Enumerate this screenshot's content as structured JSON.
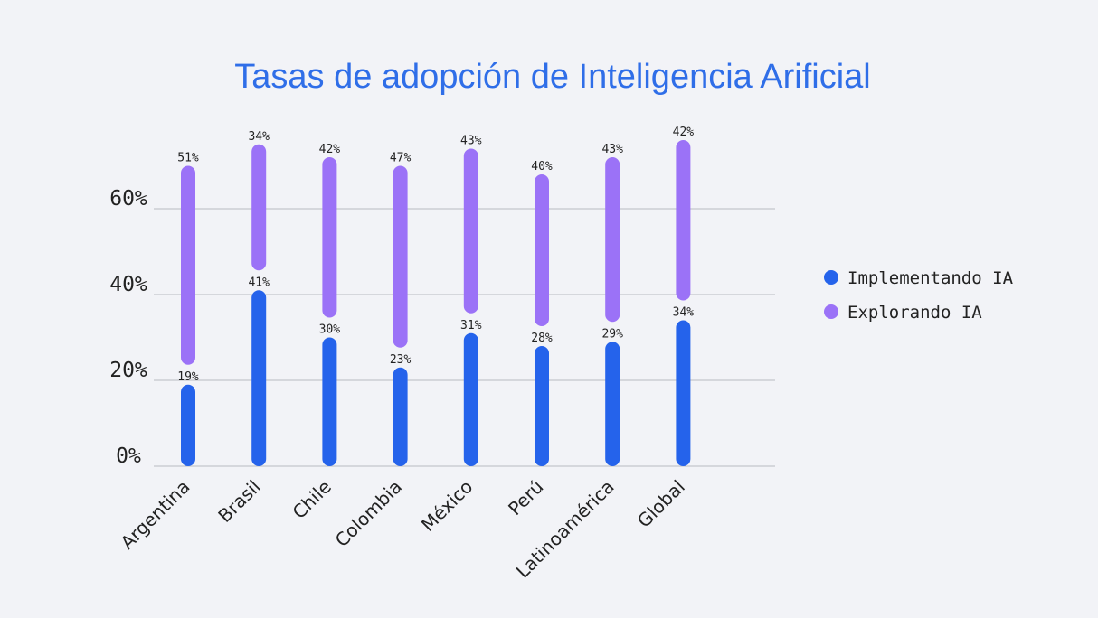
{
  "chart_data": {
    "type": "bar",
    "stacked": true,
    "title": "Tasas de adopción de Inteligencia Arificial",
    "xlabel": "",
    "ylabel": "",
    "ylim": [
      0,
      75
    ],
    "yticks": [
      0,
      20,
      40,
      60
    ],
    "ytick_labels": [
      "0%",
      "20%",
      "40%",
      "60%"
    ],
    "grid": true,
    "legend_position": "right",
    "categories": [
      "Argentina",
      "Brasil",
      "Chile",
      "Colombia",
      "México",
      "Perú",
      "Latinoamérica",
      "Global"
    ],
    "series": [
      {
        "name": "Implementando IA",
        "color": "#2563eb",
        "values": [
          19,
          41,
          30,
          23,
          31,
          28,
          29,
          34
        ],
        "labels": [
          "19%",
          "41%",
          "30%",
          "23%",
          "31%",
          "28%",
          "29%",
          "34%"
        ]
      },
      {
        "name": "Explorando IA",
        "color": "#9b72f7",
        "values": [
          51,
          34,
          42,
          47,
          43,
          40,
          43,
          42
        ],
        "labels": [
          "51%",
          "34%",
          "42%",
          "47%",
          "43%",
          "40%",
          "43%",
          "42%"
        ]
      }
    ]
  }
}
